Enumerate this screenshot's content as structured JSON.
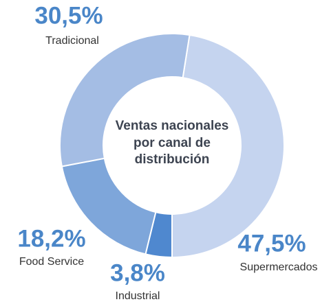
{
  "chart_data": {
    "type": "donut",
    "title": "Ventas nacionales por canal de distribución",
    "categories": [
      "Supermercados",
      "Industrial",
      "Food Service",
      "Tradicional"
    ],
    "values": [
      47.5,
      3.8,
      18.2,
      30.5
    ],
    "value_labels": [
      "47,5%",
      "3,8%",
      "18,2%",
      "30,5%"
    ],
    "colors": [
      "#c5d4ef",
      "#4f88cf",
      "#7ea6da",
      "#a4bde4"
    ]
  }
}
